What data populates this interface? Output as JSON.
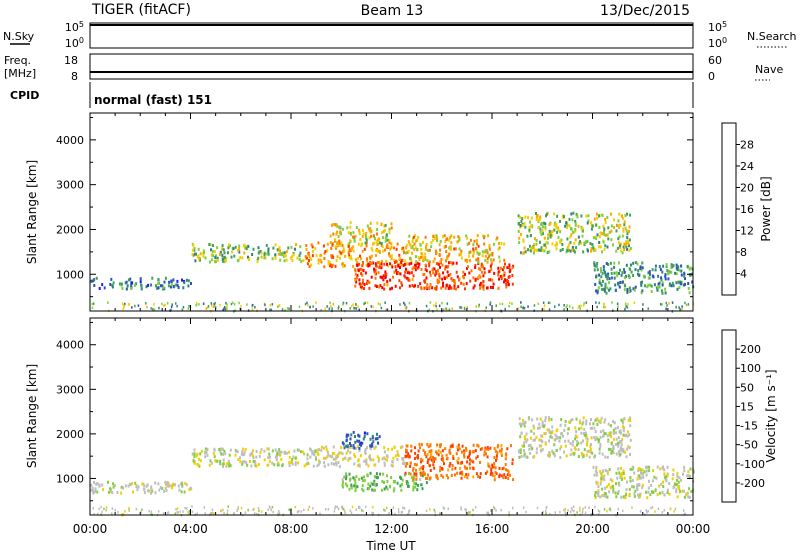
{
  "header": {
    "radar": "TIGER (fitACF)",
    "beam": "Beam 13",
    "date": "13/Dec/2015"
  },
  "strips": {
    "nsky_label": "N.Sky",
    "nsky_ticks": [
      "10^5",
      "10^0"
    ],
    "nsearch_label": "N.Search",
    "nsearch_ticks": [
      "10^5",
      "10^0"
    ],
    "freq_label": "Freq.",
    "freq_unit": "[MHz]",
    "freq_ticks": [
      "18",
      "8"
    ],
    "nave_label": "Nave",
    "nave_ticks": [
      "60",
      "0"
    ],
    "cpid_label": "CPID",
    "cpid_value": "normal (fast) 151"
  },
  "chart_data": [
    {
      "type": "heatmap",
      "name": "power-panel",
      "xlabel": "",
      "ylabel": "Slant Range [km]",
      "x_ticks": [
        "00:00",
        "04:00",
        "08:00",
        "12:00",
        "16:00",
        "20:00",
        "00:00"
      ],
      "y_ticks": [
        1000,
        2000,
        3000,
        4000
      ],
      "xlim_hours": [
        0,
        24
      ],
      "ylim_km": [
        180,
        4600
      ],
      "colorbar": {
        "label": "Power [dB]",
        "ticks": [
          4,
          8,
          12,
          16,
          20,
          24,
          28
        ],
        "range": [
          0,
          32
        ],
        "colors": [
          "#1a1aff",
          "#2a52b8",
          "#2e7f86",
          "#3fa05a",
          "#7fcf3f",
          "#f0d000",
          "#ffa800",
          "#ff7a00",
          "#ff3c00",
          "#ff0000"
        ]
      },
      "echo_regions": [
        {
          "t": [
            0.0,
            4.0
          ],
          "r": [
            700,
            950
          ],
          "power": 8
        },
        {
          "t": [
            4.0,
            8.5
          ],
          "r": [
            1300,
            1700
          ],
          "power": 14
        },
        {
          "t": [
            8.5,
            12.5
          ],
          "r": [
            1200,
            1750
          ],
          "power": 22
        },
        {
          "t": [
            9.5,
            12.0
          ],
          "r": [
            1700,
            2200
          ],
          "power": 18
        },
        {
          "t": [
            10.5,
            16.8
          ],
          "r": [
            700,
            1300
          ],
          "power": 28
        },
        {
          "t": [
            12.5,
            16.5
          ],
          "r": [
            1300,
            1900
          ],
          "power": 20
        },
        {
          "t": [
            17.0,
            21.5
          ],
          "r": [
            1500,
            2400
          ],
          "power": 15
        },
        {
          "t": [
            20.0,
            24.0
          ],
          "r": [
            600,
            1300
          ],
          "power": 10
        }
      ]
    },
    {
      "type": "heatmap",
      "name": "velocity-panel",
      "xlabel": "Time UT",
      "ylabel": "Slant Range [km]",
      "x_ticks": [
        "00:00",
        "04:00",
        "08:00",
        "12:00",
        "16:00",
        "20:00",
        "00:00"
      ],
      "y_ticks": [
        1000,
        2000,
        3000,
        4000
      ],
      "xlim_hours": [
        0,
        24
      ],
      "ylim_km": [
        180,
        4600
      ],
      "colorbar": {
        "label": "Velocity [m s⁻¹]",
        "ticks": [
          200,
          100,
          50,
          15,
          -15,
          -50,
          -100,
          -200
        ],
        "range": [
          -250,
          250
        ],
        "colors": [
          "#1a1aff",
          "#2a52b8",
          "#2e7f86",
          "#3fa05a",
          "#7fcf3f",
          "#bebebe",
          "#f0d000",
          "#ffa800",
          "#ff7a00",
          "#ff3c00",
          "#ff0000"
        ]
      },
      "echo_regions": [
        {
          "t": [
            0.0,
            4.0
          ],
          "r": [
            700,
            950
          ],
          "velocity": 0
        },
        {
          "t": [
            4.0,
            9.0
          ],
          "r": [
            1300,
            1700
          ],
          "velocity": 0
        },
        {
          "t": [
            9.0,
            12.5
          ],
          "r": [
            1300,
            1750
          ],
          "velocity": -20
        },
        {
          "t": [
            10.0,
            11.5
          ],
          "r": [
            1700,
            2100
          ],
          "velocity": 180
        },
        {
          "t": [
            10.0,
            13.5
          ],
          "r": [
            750,
            1150
          ],
          "velocity": 60
        },
        {
          "t": [
            12.5,
            16.8
          ],
          "r": [
            1000,
            1800
          ],
          "velocity": -150
        },
        {
          "t": [
            17.0,
            21.5
          ],
          "r": [
            1500,
            2400
          ],
          "velocity": 0
        },
        {
          "t": [
            20.0,
            24.0
          ],
          "r": [
            600,
            1300
          ],
          "velocity": 0
        }
      ]
    }
  ]
}
